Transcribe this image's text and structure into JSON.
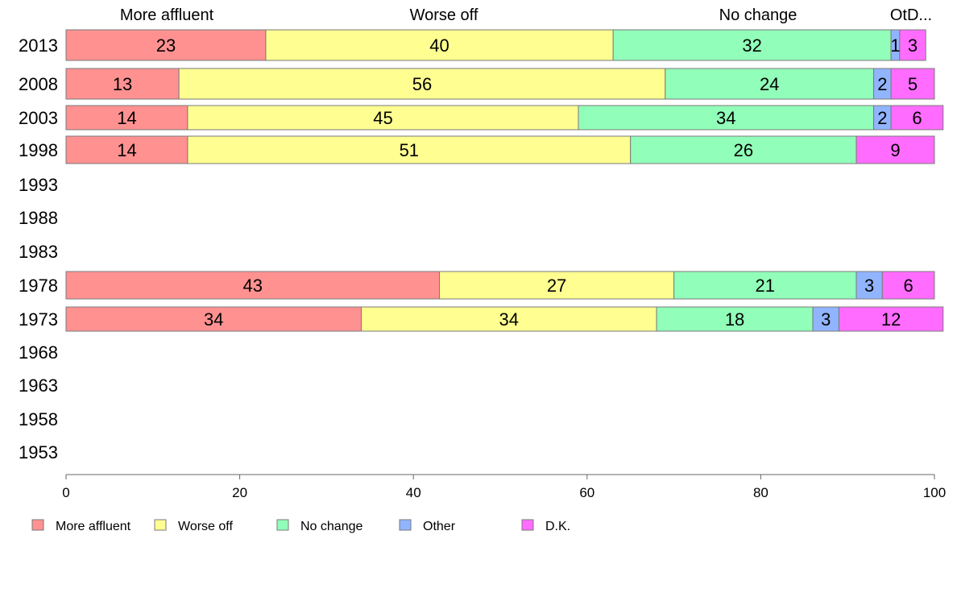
{
  "chart_data": {
    "type": "bar",
    "orientation": "horizontal",
    "stacked": true,
    "title": "",
    "xlabel": "",
    "ylabel": "",
    "xlim": [
      0,
      100
    ],
    "x_ticks": [
      0,
      20,
      40,
      60,
      80,
      100
    ],
    "grid": false,
    "legend_position": "bottom",
    "categories": [
      "2013",
      "2008",
      "2003",
      "1998",
      "1993",
      "1988",
      "1983",
      "1978",
      "1973",
      "1968",
      "1963",
      "1958",
      "1953"
    ],
    "top_labels": [
      "More affluent",
      "Worse off",
      "No change",
      "OtD..."
    ],
    "series": [
      {
        "name": "More affluent",
        "color": "#ff9191",
        "values": [
          23,
          13,
          14,
          14,
          null,
          null,
          null,
          43,
          34,
          null,
          null,
          null,
          null
        ]
      },
      {
        "name": "Worse off",
        "color": "#ffff91",
        "values": [
          40,
          56,
          45,
          51,
          null,
          null,
          null,
          27,
          34,
          null,
          null,
          null,
          null
        ]
      },
      {
        "name": "No change",
        "color": "#91ffb9",
        "values": [
          32,
          24,
          34,
          26,
          null,
          null,
          null,
          21,
          18,
          null,
          null,
          null,
          null
        ]
      },
      {
        "name": "Other",
        "color": "#91b4ff",
        "values": [
          1,
          2,
          2,
          0,
          null,
          null,
          null,
          3,
          3,
          null,
          null,
          null,
          null
        ]
      },
      {
        "name": "D.K.",
        "color": "#ff6cff",
        "values": [
          3,
          5,
          6,
          9,
          null,
          null,
          null,
          6,
          12,
          null,
          null,
          null,
          null
        ]
      }
    ]
  }
}
